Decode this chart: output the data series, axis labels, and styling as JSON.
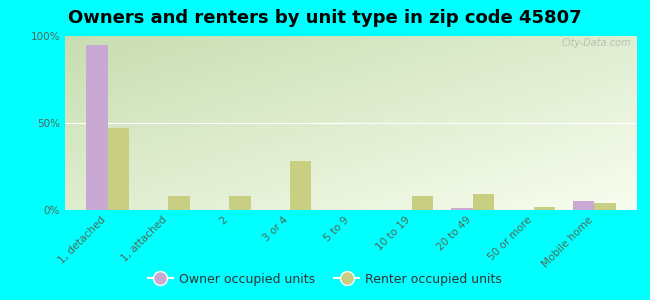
{
  "title": "Owners and renters by unit type in zip code 45807",
  "categories": [
    "1, detached",
    "1, attached",
    "2",
    "3 or 4",
    "5 to 9",
    "10 to 19",
    "20 to 49",
    "50 or more",
    "Mobile home"
  ],
  "owner_values": [
    95,
    0,
    0,
    0,
    0,
    0,
    1,
    0,
    5
  ],
  "renter_values": [
    47,
    8,
    8,
    28,
    0,
    8,
    9,
    2,
    4
  ],
  "owner_color": "#c9a8d4",
  "renter_color": "#cdd eighteen",
  "renter_color_hex": "#c8ce82",
  "bg_color_top": "#c8ddb0",
  "bg_color_bottom": "#f8fef0",
  "outer_background": "#00ffff",
  "title_fontsize": 13,
  "tick_fontsize": 7.5,
  "legend_fontsize": 9,
  "ylim": [
    0,
    100
  ],
  "yticks": [
    0,
    50,
    100
  ],
  "ytick_labels": [
    "0%",
    "50%",
    "100%"
  ],
  "bar_width": 0.35,
  "watermark": "City-Data.com"
}
